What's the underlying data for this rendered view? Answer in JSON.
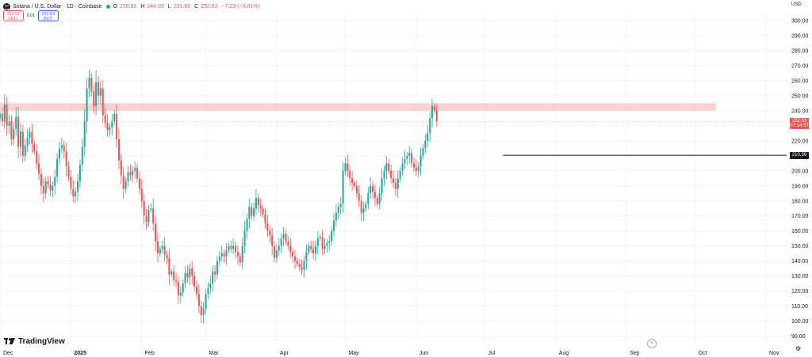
{
  "header": {
    "symbol": "Solana / U.S. Dollar · 1D · Coinbase",
    "ohlc": {
      "o": "239.85",
      "h": "244.09",
      "l": "231.60",
      "c": "232.63",
      "change": "−7.23 (−3.01%)"
    }
  },
  "trade": {
    "sell_price": "232.62",
    "sell_label": "SELL",
    "spread": "0.01",
    "buy_price": "232.63",
    "buy_label": "BUY"
  },
  "branding": {
    "logo_text": "TradingView"
  },
  "price_axis": {
    "currency": "USD"
  },
  "current_price": {
    "value": "232.63",
    "countdown": "07:14:57"
  },
  "level_label": "210.39",
  "colors": {
    "up": "#26a69a",
    "down": "#ef5350",
    "zone": "#f8c9c9",
    "level_line": "#131722"
  },
  "icons": {
    "symbol": "solana-logo-icon",
    "settings": "gear-icon",
    "goto": "goto-realtime-icon"
  },
  "chart_data": {
    "type": "candlestick",
    "x_start": "2024-12-01",
    "y_ticks": [
      90,
      100,
      110,
      120,
      130,
      140,
      150,
      160,
      170,
      180,
      190,
      200,
      210,
      220,
      230,
      240,
      250,
      260,
      270,
      280,
      290,
      300
    ],
    "ylim": [
      85,
      310
    ],
    "x_ticks": [
      {
        "label": "Dec",
        "date": "2024-12-01"
      },
      {
        "label": "2025",
        "date": "2025-01-01"
      },
      {
        "label": "Feb",
        "date": "2025-02-01"
      },
      {
        "label": "Mar",
        "date": "2025-03-01"
      },
      {
        "label": "Apr",
        "date": "2025-04-01"
      },
      {
        "label": "May",
        "date": "2025-05-01"
      },
      {
        "label": "Jun",
        "date": "2025-06-01"
      },
      {
        "label": "Jul",
        "date": "2025-07-01"
      },
      {
        "label": "Aug",
        "date": "2025-08-01"
      },
      {
        "label": "Sep",
        "date": "2025-09-01"
      },
      {
        "label": "Oct",
        "date": "2025-10-01"
      },
      {
        "label": "Nov",
        "date": "2025-11-01"
      }
    ],
    "xlim": [
      "2024-12-01",
      "2025-11-10"
    ],
    "closes": [
      238,
      233,
      244,
      230,
      233,
      221,
      228,
      236,
      216,
      226,
      210,
      217,
      222,
      226,
      218,
      213,
      205,
      198,
      190,
      185,
      193,
      191,
      187,
      190,
      196,
      208,
      215,
      217,
      213,
      203,
      196,
      188,
      183,
      186,
      193,
      204,
      216,
      233,
      255,
      262,
      253,
      243,
      259,
      250,
      255,
      237,
      232,
      227,
      229,
      233,
      238,
      221,
      207,
      197,
      188,
      193,
      199,
      197,
      200,
      202,
      195,
      188,
      180,
      170,
      166,
      174,
      175,
      165,
      153,
      145,
      148,
      150,
      144,
      142,
      131,
      133,
      127,
      126,
      117,
      119,
      125,
      132,
      129,
      135,
      130,
      123,
      118,
      110,
      104,
      108,
      118,
      122,
      125,
      133,
      131,
      140,
      143,
      145,
      143,
      147,
      150,
      148,
      150,
      146,
      143,
      139,
      150,
      160,
      168,
      176,
      170,
      175,
      182,
      177,
      175,
      171,
      165,
      160,
      157,
      150,
      142,
      147,
      150,
      155,
      158,
      153,
      150,
      146,
      143,
      140,
      138,
      136,
      134,
      140,
      146,
      150,
      148,
      145,
      150,
      155,
      156,
      148,
      150,
      152,
      153,
      160,
      167,
      172,
      176,
      178,
      200,
      205,
      200,
      195,
      192,
      190,
      185,
      180,
      172,
      175,
      178,
      185,
      190,
      186,
      182,
      178,
      185,
      195,
      200,
      205,
      200,
      195,
      192,
      188,
      195,
      200,
      205,
      208,
      210,
      212,
      205,
      202,
      200,
      203,
      210,
      215,
      220,
      225,
      235,
      243,
      240,
      233
    ],
    "level": {
      "value": 210.39,
      "from": "2025-07-09",
      "to": "2025-11-10"
    },
    "zone": {
      "low": 240,
      "high": 245,
      "from": "2024-12-01",
      "to": "2025-10-10"
    },
    "last_price": 232.63
  }
}
